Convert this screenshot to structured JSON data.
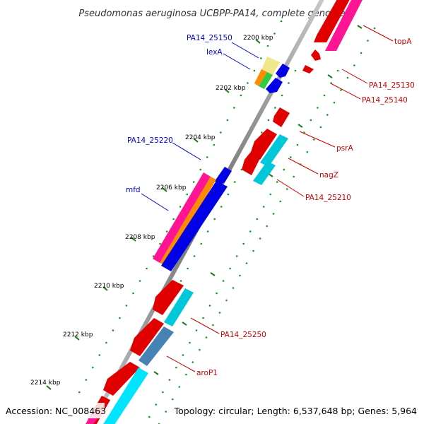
{
  "title": "Pseudomonas aeruginosa UCBPP-PA14, complete genome",
  "footer": {
    "accession": "Accession: NC_008463",
    "summary": "Topology: circular; Length: 6,537,648 bp; Genes: 5,964"
  },
  "kbp_ticks": [
    "2200 kbp",
    "2202 kbp",
    "2204 kbp",
    "2206 kbp",
    "2208 kbp",
    "2210 kbp",
    "2212 kbp",
    "2214 kbp"
  ],
  "gene_labels": {
    "left": [
      "PA14_25150",
      "lexA",
      "PA14_25220",
      "mfd"
    ],
    "right": [
      "topA",
      "PA14_25130",
      "PA14_25140",
      "psrA",
      "nagZ",
      "PA14_25210",
      "PA14_25250",
      "aroP1"
    ]
  },
  "colors": {
    "genome_line": "#8a8a8a",
    "tick_green": "#1a7a1a",
    "label_left": "#0000cc",
    "label_right": "#cc0000",
    "red": "#e00000",
    "magenta": "#ff1493",
    "cyan": "#00c8d8",
    "blue": "#0000e6",
    "orange": "#ff8c00",
    "yellow": "#f0e68c",
    "green": "#2ecc40",
    "steel": "#4682b4"
  }
}
